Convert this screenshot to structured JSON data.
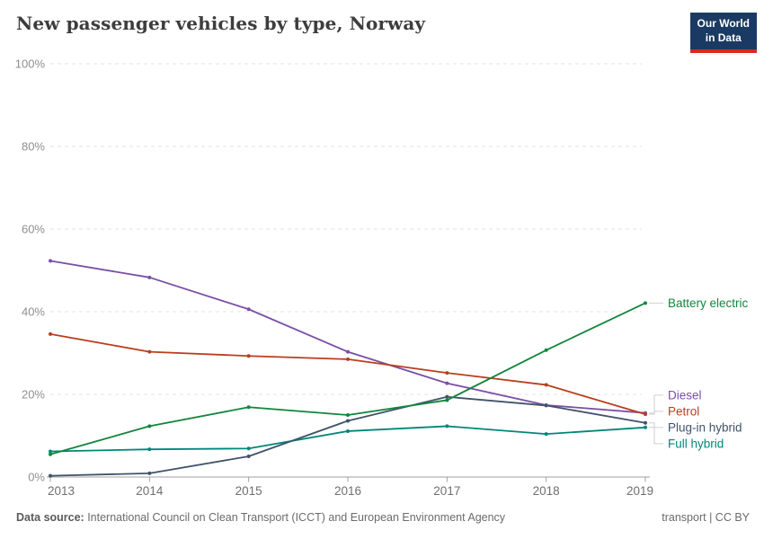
{
  "header": {
    "title": "New passenger vehicles by type, Norway",
    "logo": {
      "line1": "Our World",
      "line2": "in Data",
      "bg_color": "#1a3a63",
      "accent_color": "#d42b23"
    }
  },
  "chart_data": {
    "type": "line",
    "title": "New passenger vehicles by type, Norway",
    "x": [
      2013,
      2014,
      2015,
      2016,
      2017,
      2018,
      2019
    ],
    "series": [
      {
        "name": "Diesel",
        "color": "#7a4fa5",
        "values": [
          52.3,
          48.3,
          40.6,
          30.3,
          22.7,
          17.4,
          15.5
        ]
      },
      {
        "name": "Petrol",
        "color": "#bb3e1d",
        "values": [
          34.6,
          30.3,
          29.3,
          28.5,
          25.2,
          22.3,
          15.2
        ]
      },
      {
        "name": "Full hybrid",
        "color": "#008779",
        "values": [
          6.2,
          6.7,
          6.9,
          11.1,
          12.3,
          10.4,
          12.0
        ]
      },
      {
        "name": "Plug-in hybrid",
        "color": "#40536a",
        "values": [
          0.3,
          0.9,
          5.0,
          13.6,
          19.4,
          17.3,
          13.1
        ]
      },
      {
        "name": "Battery electric",
        "color": "#11863d",
        "values": [
          5.5,
          12.3,
          16.9,
          15.0,
          18.6,
          30.7,
          42.1
        ]
      }
    ],
    "ylim": [
      0,
      100
    ],
    "yticks": [
      0,
      20,
      40,
      60,
      80,
      100
    ],
    "ytick_suffix": "%",
    "grid": "dashed-horizontal",
    "legend_position": "right-of-lines",
    "xlabel": "",
    "ylabel": ""
  },
  "footer": {
    "datasource_label": "Data source:",
    "datasource_text": " International Council on Clean Transport (ICCT) and European Environment Agency",
    "license": "transport | CC BY"
  }
}
